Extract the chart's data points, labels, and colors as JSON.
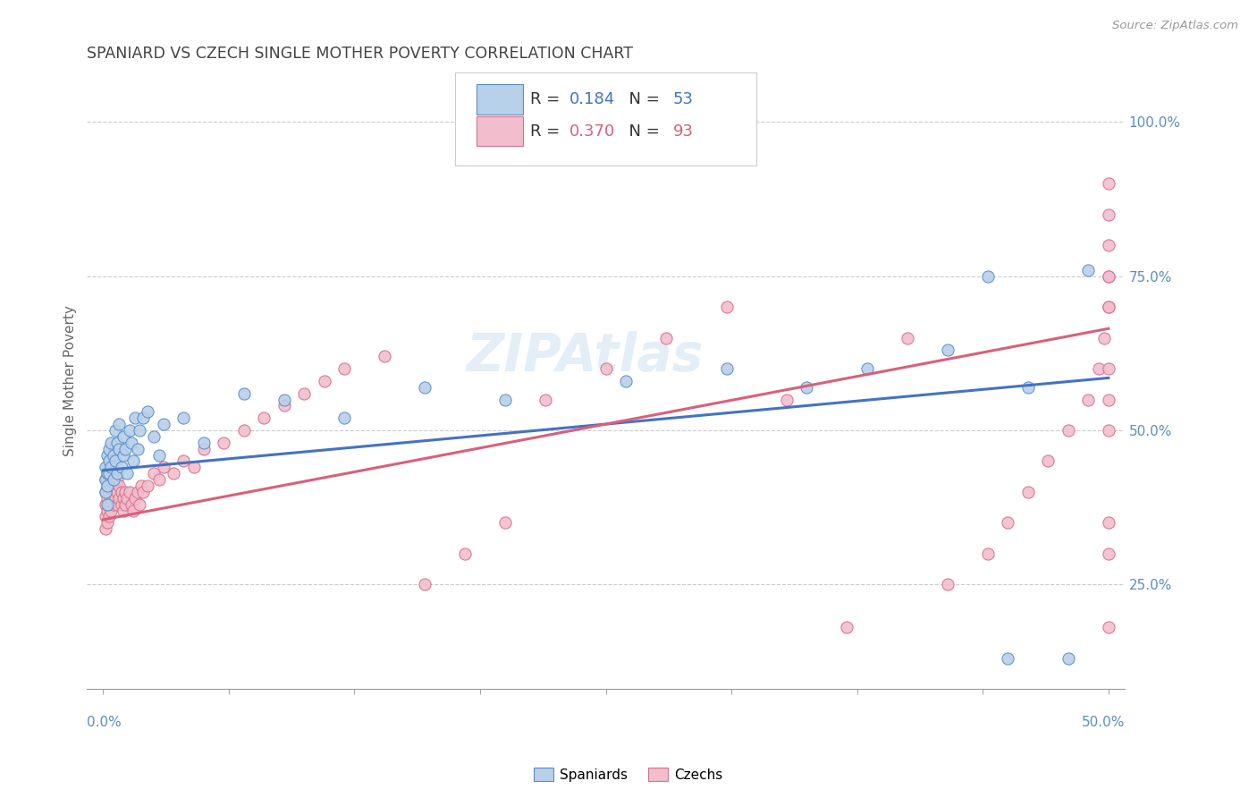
{
  "title": "SPANIARD VS CZECH SINGLE MOTHER POVERTY CORRELATION CHART",
  "source": "Source: ZipAtlas.com",
  "ylabel": "Single Mother Poverty",
  "right_yticks": [
    0.25,
    0.5,
    0.75,
    1.0
  ],
  "right_yticklabels": [
    "25.0%",
    "50.0%",
    "75.0%",
    "100.0%"
  ],
  "legend_blue": {
    "R": "0.184",
    "N": "53",
    "label": "Spaniards"
  },
  "legend_pink": {
    "R": "0.370",
    "N": "93",
    "label": "Czechs"
  },
  "blue_fill": "#b8d0ea",
  "pink_fill": "#f2bece",
  "blue_edge": "#5b8ec4",
  "pink_edge": "#d8708a",
  "blue_line": "#4472c4",
  "pink_line": "#d9607a",
  "watermark": "ZIPAtlas",
  "xlim": [
    0.0,
    0.5
  ],
  "ylim": [
    0.08,
    1.08
  ],
  "blue_intercept": 0.435,
  "blue_slope": 0.3,
  "pink_intercept": 0.355,
  "pink_slope": 0.62,
  "spaniards_x": [
    0.001,
    0.001,
    0.001,
    0.002,
    0.002,
    0.002,
    0.002,
    0.003,
    0.003,
    0.003,
    0.004,
    0.004,
    0.005,
    0.005,
    0.006,
    0.006,
    0.007,
    0.007,
    0.008,
    0.008,
    0.009,
    0.01,
    0.01,
    0.011,
    0.012,
    0.013,
    0.014,
    0.015,
    0.016,
    0.017,
    0.018,
    0.02,
    0.022,
    0.025,
    0.028,
    0.03,
    0.04,
    0.05,
    0.07,
    0.09,
    0.12,
    0.16,
    0.2,
    0.26,
    0.31,
    0.35,
    0.38,
    0.42,
    0.44,
    0.45,
    0.46,
    0.48,
    0.49
  ],
  "spaniards_y": [
    0.42,
    0.44,
    0.4,
    0.43,
    0.46,
    0.38,
    0.41,
    0.45,
    0.47,
    0.43,
    0.44,
    0.48,
    0.46,
    0.42,
    0.5,
    0.45,
    0.48,
    0.43,
    0.47,
    0.51,
    0.44,
    0.46,
    0.49,
    0.47,
    0.43,
    0.5,
    0.48,
    0.45,
    0.52,
    0.47,
    0.5,
    0.52,
    0.53,
    0.49,
    0.46,
    0.51,
    0.52,
    0.48,
    0.56,
    0.55,
    0.52,
    0.57,
    0.55,
    0.58,
    0.6,
    0.57,
    0.6,
    0.63,
    0.75,
    0.13,
    0.57,
    0.13,
    0.76
  ],
  "czechs_x": [
    0.001,
    0.001,
    0.001,
    0.001,
    0.001,
    0.002,
    0.002,
    0.002,
    0.002,
    0.002,
    0.003,
    0.003,
    0.003,
    0.003,
    0.003,
    0.004,
    0.004,
    0.004,
    0.004,
    0.005,
    0.005,
    0.005,
    0.006,
    0.006,
    0.006,
    0.007,
    0.007,
    0.007,
    0.008,
    0.008,
    0.009,
    0.009,
    0.01,
    0.01,
    0.011,
    0.011,
    0.012,
    0.013,
    0.014,
    0.015,
    0.016,
    0.017,
    0.018,
    0.019,
    0.02,
    0.022,
    0.025,
    0.028,
    0.03,
    0.035,
    0.04,
    0.045,
    0.05,
    0.06,
    0.07,
    0.08,
    0.09,
    0.1,
    0.11,
    0.12,
    0.14,
    0.16,
    0.18,
    0.2,
    0.22,
    0.25,
    0.28,
    0.31,
    0.34,
    0.37,
    0.4,
    0.42,
    0.44,
    0.45,
    0.46,
    0.47,
    0.48,
    0.49,
    0.495,
    0.498,
    0.5,
    0.5,
    0.5,
    0.5,
    0.5,
    0.5,
    0.5,
    0.5,
    0.5,
    0.5,
    0.5,
    0.5,
    0.5
  ],
  "czechs_y": [
    0.42,
    0.4,
    0.38,
    0.36,
    0.34,
    0.43,
    0.41,
    0.39,
    0.37,
    0.35,
    0.44,
    0.42,
    0.4,
    0.38,
    0.36,
    0.43,
    0.41,
    0.39,
    0.37,
    0.42,
    0.4,
    0.38,
    0.43,
    0.41,
    0.39,
    0.42,
    0.4,
    0.38,
    0.41,
    0.39,
    0.4,
    0.38,
    0.39,
    0.37,
    0.4,
    0.38,
    0.39,
    0.4,
    0.38,
    0.37,
    0.39,
    0.4,
    0.38,
    0.41,
    0.4,
    0.41,
    0.43,
    0.42,
    0.44,
    0.43,
    0.45,
    0.44,
    0.47,
    0.48,
    0.5,
    0.52,
    0.54,
    0.56,
    0.58,
    0.6,
    0.62,
    0.25,
    0.3,
    0.35,
    0.55,
    0.6,
    0.65,
    0.7,
    0.55,
    0.18,
    0.65,
    0.25,
    0.3,
    0.35,
    0.4,
    0.45,
    0.5,
    0.55,
    0.6,
    0.65,
    0.7,
    0.18,
    0.75,
    0.3,
    0.35,
    0.8,
    0.85,
    0.5,
    0.55,
    0.6,
    0.9,
    0.7,
    0.75
  ]
}
